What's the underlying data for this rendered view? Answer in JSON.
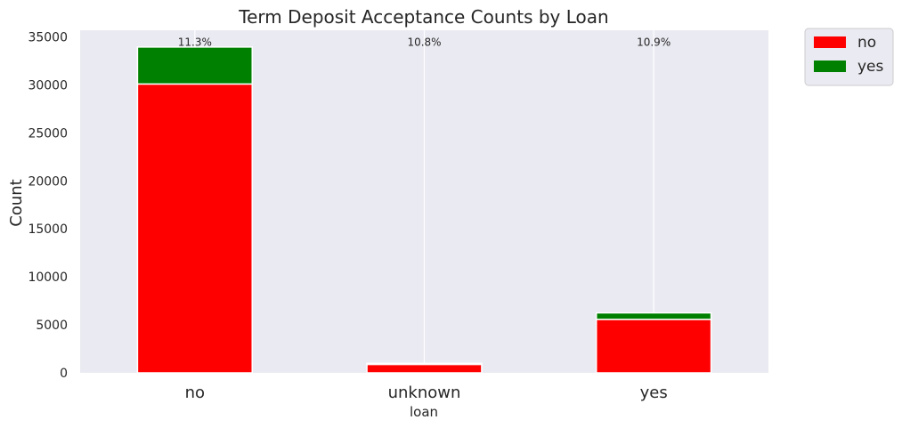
{
  "chart_data": {
    "type": "bar",
    "stacked": true,
    "title": "Term Deposit Acceptance Counts by Loan",
    "xlabel": "loan",
    "ylabel": "Count",
    "categories": [
      "no",
      "unknown",
      "yes"
    ],
    "series": [
      {
        "name": "no",
        "color": "#ff0000",
        "values": [
          30100,
          883,
          5565
        ]
      },
      {
        "name": "yes",
        "color": "#008000",
        "values": [
          3850,
          107,
          683
        ]
      }
    ],
    "annotations": [
      "11.3%",
      "10.8%",
      "10.9%"
    ],
    "ylim": [
      0,
      35700
    ],
    "yticks": [
      0,
      5000,
      10000,
      15000,
      20000,
      25000,
      30000,
      35000
    ],
    "grid": "vertical",
    "legend_position": "outside-top-right"
  }
}
